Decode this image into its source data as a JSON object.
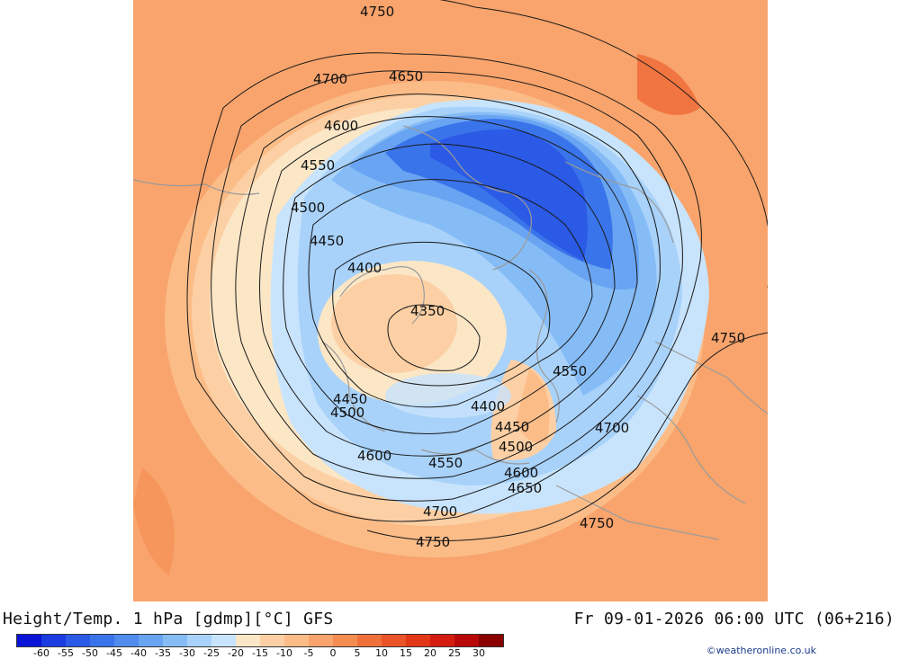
{
  "title": "Height/Temp. 1 hPa [gdmp][°C] GFS",
  "valid_time": "Fr 09-01-2026 06:00 UTC (06+216)",
  "credit": "©weatheronline.co.uk",
  "colorbar": {
    "colors": [
      "#0a14d8",
      "#1a3ce0",
      "#2a5ae6",
      "#3a74ea",
      "#4f8cee",
      "#68a4f2",
      "#86bcf6",
      "#a8d2fa",
      "#c8e4fc",
      "#fbe6c6",
      "#fcd0a4",
      "#fbbc88",
      "#f9a46c",
      "#f58c52",
      "#f0703c",
      "#ea5428",
      "#e23818",
      "#d41c10",
      "#b80808",
      "#8a0000"
    ],
    "labels": [
      "-60",
      "-55",
      "-50",
      "-45",
      "-40",
      "-35",
      "-30",
      "-25",
      "-20",
      "-15",
      "-10",
      "-5",
      "0",
      "5",
      "10",
      "15",
      "20",
      "25",
      "30"
    ]
  },
  "contour_labels": [
    {
      "text": "4750"
    },
    {
      "text": "4700"
    },
    {
      "text": "4650"
    },
    {
      "text": "4600"
    },
    {
      "text": "4550"
    },
    {
      "text": "4500"
    },
    {
      "text": "4450"
    },
    {
      "text": "4400"
    },
    {
      "text": "4350"
    },
    {
      "text": "4750"
    },
    {
      "text": "4550"
    },
    {
      "text": "4450"
    },
    {
      "text": "4500"
    },
    {
      "text": "4400"
    },
    {
      "text": "4450"
    },
    {
      "text": "4700"
    },
    {
      "text": "4500"
    },
    {
      "text": "4600"
    },
    {
      "text": "4550"
    },
    {
      "text": "4600"
    },
    {
      "text": "4650"
    },
    {
      "text": "4700"
    },
    {
      "text": "4750"
    },
    {
      "text": "4750"
    }
  ]
}
